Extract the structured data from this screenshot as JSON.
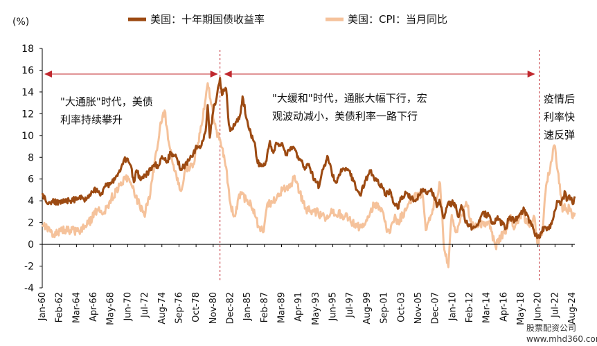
{
  "chart_data": {
    "type": "line",
    "unit_label": "(%)",
    "ylim": [
      -4,
      18
    ],
    "y_ticks": [
      -4,
      -2,
      0,
      2,
      4,
      6,
      8,
      10,
      12,
      14,
      16,
      18
    ],
    "x_range": [
      "1960-01",
      "2024-12"
    ],
    "x_ticks": [
      "Jan-60",
      "Feb-62",
      "Mar-64",
      "Apr-66",
      "May-68",
      "Jun-70",
      "Jul-72",
      "Aug-74",
      "Sep-76",
      "Oct-78",
      "Nov-80",
      "Dec-82",
      "Jan-85",
      "Feb-87",
      "Mar-89",
      "Apr-91",
      "May-93",
      "Jun-95",
      "Jul-97",
      "Aug-99",
      "Sep-01",
      "Oct-03",
      "Nov-05",
      "Dec-07",
      "Jan-10",
      "Feb-12",
      "Mar-14",
      "Apr-16",
      "May-18",
      "Jun-20",
      "Jul-22",
      "Aug-24"
    ],
    "x_tick_dates": [
      "1960-01",
      "1962-02",
      "1964-03",
      "1966-04",
      "1968-05",
      "1970-06",
      "1972-07",
      "1974-08",
      "1976-09",
      "1978-10",
      "1980-11",
      "1982-12",
      "1985-01",
      "1987-02",
      "1989-03",
      "1991-04",
      "1993-05",
      "1995-06",
      "1997-07",
      "1999-08",
      "2001-09",
      "2003-10",
      "2005-11",
      "2007-12",
      "2010-01",
      "2012-02",
      "2014-03",
      "2016-04",
      "2018-05",
      "2020-06",
      "2022-07",
      "2024-08"
    ],
    "series": [
      {
        "name": "美国：十年期国债收益率",
        "color": "#9C4A12",
        "points": [
          [
            "1960-01",
            4.7
          ],
          [
            "1960-06",
            4.0
          ],
          [
            "1961-06",
            3.9
          ],
          [
            "1962-06",
            3.9
          ],
          [
            "1963-06",
            4.0
          ],
          [
            "1964-06",
            4.2
          ],
          [
            "1965-06",
            4.2
          ],
          [
            "1966-03",
            4.8
          ],
          [
            "1966-09",
            5.1
          ],
          [
            "1967-03",
            4.6
          ],
          [
            "1967-09",
            5.3
          ],
          [
            "1968-06",
            5.6
          ],
          [
            "1968-12",
            6.1
          ],
          [
            "1969-06",
            6.8
          ],
          [
            "1969-12",
            7.7
          ],
          [
            "1970-05",
            7.9
          ],
          [
            "1970-10",
            7.3
          ],
          [
            "1971-03",
            5.7
          ],
          [
            "1971-07",
            6.8
          ],
          [
            "1972-01",
            5.9
          ],
          [
            "1972-08",
            6.4
          ],
          [
            "1973-03",
            6.8
          ],
          [
            "1973-08",
            7.3
          ],
          [
            "1974-03",
            7.2
          ],
          [
            "1974-08",
            8.1
          ],
          [
            "1975-03",
            7.5
          ],
          [
            "1975-09",
            8.4
          ],
          [
            "1976-06",
            7.9
          ],
          [
            "1976-12",
            6.9
          ],
          [
            "1977-06",
            7.3
          ],
          [
            "1977-12",
            7.7
          ],
          [
            "1978-06",
            8.4
          ],
          [
            "1978-12",
            9.0
          ],
          [
            "1979-06",
            9.1
          ],
          [
            "1979-12",
            10.4
          ],
          [
            "1980-03",
            12.8
          ],
          [
            "1980-06",
            9.8
          ],
          [
            "1980-12",
            12.8
          ],
          [
            "1981-03",
            13.1
          ],
          [
            "1981-09",
            15.3
          ],
          [
            "1981-12",
            13.7
          ],
          [
            "1982-03",
            14.1
          ],
          [
            "1982-06",
            14.3
          ],
          [
            "1982-10",
            11.0
          ],
          [
            "1982-12",
            10.4
          ],
          [
            "1983-06",
            10.9
          ],
          [
            "1984-02",
            11.8
          ],
          [
            "1984-06",
            13.6
          ],
          [
            "1984-12",
            11.5
          ],
          [
            "1985-06",
            10.2
          ],
          [
            "1985-12",
            9.3
          ],
          [
            "1986-03",
            7.8
          ],
          [
            "1986-08",
            7.2
          ],
          [
            "1987-03",
            7.3
          ],
          [
            "1987-10",
            9.5
          ],
          [
            "1988-03",
            8.4
          ],
          [
            "1988-08",
            9.3
          ],
          [
            "1989-03",
            9.3
          ],
          [
            "1989-09",
            8.2
          ],
          [
            "1990-03",
            8.6
          ],
          [
            "1990-09",
            8.9
          ],
          [
            "1991-03",
            8.1
          ],
          [
            "1991-12",
            7.1
          ],
          [
            "1992-06",
            7.3
          ],
          [
            "1993-03",
            6.0
          ],
          [
            "1993-10",
            5.3
          ],
          [
            "1994-05",
            7.2
          ],
          [
            "1994-11",
            8.0
          ],
          [
            "1995-06",
            6.2
          ],
          [
            "1995-12",
            5.7
          ],
          [
            "1996-06",
            6.9
          ],
          [
            "1997-04",
            6.9
          ],
          [
            "1997-12",
            5.8
          ],
          [
            "1998-10",
            4.5
          ],
          [
            "1999-06",
            5.9
          ],
          [
            "2000-01",
            6.7
          ],
          [
            "2000-08",
            5.9
          ],
          [
            "2001-06",
            5.3
          ],
          [
            "2001-11",
            4.6
          ],
          [
            "2002-06",
            4.9
          ],
          [
            "2002-10",
            3.9
          ],
          [
            "2003-06",
            3.3
          ],
          [
            "2003-09",
            4.3
          ],
          [
            "2004-06",
            4.7
          ],
          [
            "2005-06",
            4.0
          ],
          [
            "2006-06",
            5.1
          ],
          [
            "2006-12",
            4.6
          ],
          [
            "2007-06",
            5.1
          ],
          [
            "2008-03",
            3.5
          ],
          [
            "2008-06",
            4.1
          ],
          [
            "2008-12",
            2.4
          ],
          [
            "2009-06",
            3.7
          ],
          [
            "2010-04",
            3.8
          ],
          [
            "2010-10",
            2.5
          ],
          [
            "2011-02",
            3.6
          ],
          [
            "2011-09",
            2.0
          ],
          [
            "2012-07",
            1.5
          ],
          [
            "2013-03",
            1.9
          ],
          [
            "2013-09",
            2.9
          ],
          [
            "2014-06",
            2.6
          ],
          [
            "2015-01",
            1.9
          ],
          [
            "2015-06",
            2.4
          ],
          [
            "2016-07",
            1.5
          ],
          [
            "2016-12",
            2.5
          ],
          [
            "2017-09",
            2.2
          ],
          [
            "2018-10",
            3.2
          ],
          [
            "2019-09",
            1.7
          ],
          [
            "2020-03",
            0.9
          ],
          [
            "2020-08",
            0.6
          ],
          [
            "2021-03",
            1.6
          ],
          [
            "2021-12",
            1.5
          ],
          [
            "2022-06",
            3.0
          ],
          [
            "2022-10",
            4.0
          ],
          [
            "2023-03",
            3.6
          ],
          [
            "2023-10",
            4.8
          ],
          [
            "2023-12",
            4.0
          ],
          [
            "2024-04",
            4.5
          ],
          [
            "2024-09",
            3.7
          ],
          [
            "2024-12",
            4.4
          ]
        ]
      },
      {
        "name": "美国：CPI：当月同比",
        "color": "#F5C29B",
        "points": [
          [
            "1960-01",
            1.8
          ],
          [
            "1960-06",
            1.7
          ],
          [
            "1961-06",
            0.9
          ],
          [
            "1962-06",
            1.3
          ],
          [
            "1963-06",
            1.3
          ],
          [
            "1964-06",
            1.2
          ],
          [
            "1965-06",
            1.7
          ],
          [
            "1966-06",
            2.8
          ],
          [
            "1966-12",
            3.4
          ],
          [
            "1967-06",
            2.8
          ],
          [
            "1968-06",
            4.2
          ],
          [
            "1969-06",
            5.4
          ],
          [
            "1970-02",
            6.2
          ],
          [
            "1970-10",
            5.7
          ],
          [
            "1971-06",
            4.4
          ],
          [
            "1972-06",
            2.7
          ],
          [
            "1973-03",
            4.6
          ],
          [
            "1973-09",
            7.4
          ],
          [
            "1974-05",
            10.7
          ],
          [
            "1974-12",
            12.3
          ],
          [
            "1975-06",
            9.4
          ],
          [
            "1976-06",
            5.9
          ],
          [
            "1976-12",
            4.9
          ],
          [
            "1977-06",
            6.8
          ],
          [
            "1978-06",
            7.4
          ],
          [
            "1979-06",
            10.9
          ],
          [
            "1980-03",
            14.8
          ],
          [
            "1980-08",
            12.9
          ],
          [
            "1981-03",
            10.6
          ],
          [
            "1981-12",
            8.9
          ],
          [
            "1982-06",
            7.1
          ],
          [
            "1982-12",
            3.8
          ],
          [
            "1983-06",
            2.6
          ],
          [
            "1984-03",
            4.8
          ],
          [
            "1984-12",
            4.0
          ],
          [
            "1985-06",
            3.8
          ],
          [
            "1986-06",
            1.6
          ],
          [
            "1986-12",
            1.1
          ],
          [
            "1987-06",
            3.7
          ],
          [
            "1988-06",
            4.0
          ],
          [
            "1989-06",
            5.2
          ],
          [
            "1990-03",
            5.2
          ],
          [
            "1990-10",
            6.3
          ],
          [
            "1991-06",
            4.7
          ],
          [
            "1992-03",
            3.2
          ],
          [
            "1993-06",
            3.0
          ],
          [
            "1994-06",
            2.5
          ],
          [
            "1995-06",
            3.0
          ],
          [
            "1996-06",
            2.8
          ],
          [
            "1997-06",
            2.3
          ],
          [
            "1998-06",
            1.6
          ],
          [
            "1999-06",
            2.0
          ],
          [
            "2000-06",
            3.7
          ],
          [
            "2001-06",
            3.2
          ],
          [
            "2001-12",
            1.6
          ],
          [
            "2002-06",
            1.1
          ],
          [
            "2002-12",
            2.4
          ],
          [
            "2003-06",
            2.1
          ],
          [
            "2004-06",
            3.3
          ],
          [
            "2005-09",
            4.7
          ],
          [
            "2006-06",
            4.3
          ],
          [
            "2006-10",
            1.3
          ],
          [
            "2007-06",
            2.7
          ],
          [
            "2008-07",
            5.6
          ],
          [
            "2008-12",
            0.1
          ],
          [
            "2009-07",
            -2.1
          ],
          [
            "2009-12",
            2.7
          ],
          [
            "2010-06",
            1.1
          ],
          [
            "2011-09",
            3.9
          ],
          [
            "2012-06",
            1.7
          ],
          [
            "2013-06",
            1.8
          ],
          [
            "2014-06",
            2.1
          ],
          [
            "2015-04",
            -0.2
          ],
          [
            "2015-12",
            0.7
          ],
          [
            "2016-06",
            1.0
          ],
          [
            "2017-02",
            2.7
          ],
          [
            "2017-06",
            1.6
          ],
          [
            "2018-07",
            2.9
          ],
          [
            "2019-06",
            1.6
          ],
          [
            "2020-01",
            2.5
          ],
          [
            "2020-05",
            0.1
          ],
          [
            "2021-01",
            1.4
          ],
          [
            "2021-06",
            5.4
          ],
          [
            "2021-12",
            7.0
          ],
          [
            "2022-06",
            9.1
          ],
          [
            "2022-12",
            6.5
          ],
          [
            "2023-06",
            3.0
          ],
          [
            "2023-09",
            3.7
          ],
          [
            "2024-01",
            3.1
          ],
          [
            "2024-04",
            3.4
          ],
          [
            "2024-09",
            2.4
          ],
          [
            "2024-12",
            2.9
          ]
        ]
      }
    ],
    "periods": [
      {
        "start": "1960-01",
        "end": "1981-09",
        "label_lines": [
          "\"大通胀\"时代，美债",
          "利率持续攀升"
        ]
      },
      {
        "start": "1981-09",
        "end": "2020-08",
        "label_lines": [
          "\"大缓和\"时代，通胀大幅下行，宏",
          "观波动减小，美债利率一路下行"
        ]
      },
      {
        "start": "2020-08",
        "end": "2024-12",
        "label_lines": [
          "疫情后",
          "利率快",
          "速反弹"
        ]
      }
    ],
    "divider_dates": [
      "1981-09",
      "2020-08"
    ],
    "annotation_color": "#C0282E",
    "axis_color": "#000000",
    "grid": false,
    "legend_position": "top"
  },
  "watermark": {
    "line1": "股票配资公司",
    "line2": "www.mhd360.com"
  }
}
